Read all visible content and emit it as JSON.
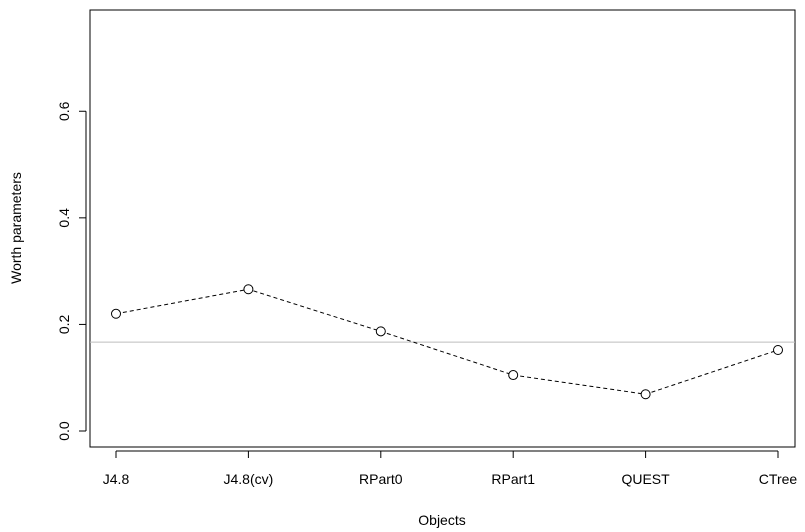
{
  "chart_data": {
    "type": "line",
    "title": "",
    "xlabel": "Objects",
    "ylabel": "Worth parameters",
    "categories": [
      "J4.8",
      "J4.8(cv)",
      "RPart0",
      "RPart1",
      "QUEST",
      "CTree"
    ],
    "series": [
      {
        "values": [
          0.22,
          0.266,
          0.187,
          0.105,
          0.069,
          0.152
        ]
      }
    ],
    "yticks": [
      0.0,
      0.2,
      0.4,
      0.6
    ],
    "ytick_labels": [
      "0.0",
      "0.2",
      "0.4",
      "0.6"
    ],
    "ylim": [
      -0.03,
      0.79
    ],
    "reference_line": 0.1667,
    "line_style": "dashed",
    "marker": "open-circle",
    "grid": false,
    "colors": {
      "series": "#000000",
      "reference": "#bebebe"
    }
  }
}
